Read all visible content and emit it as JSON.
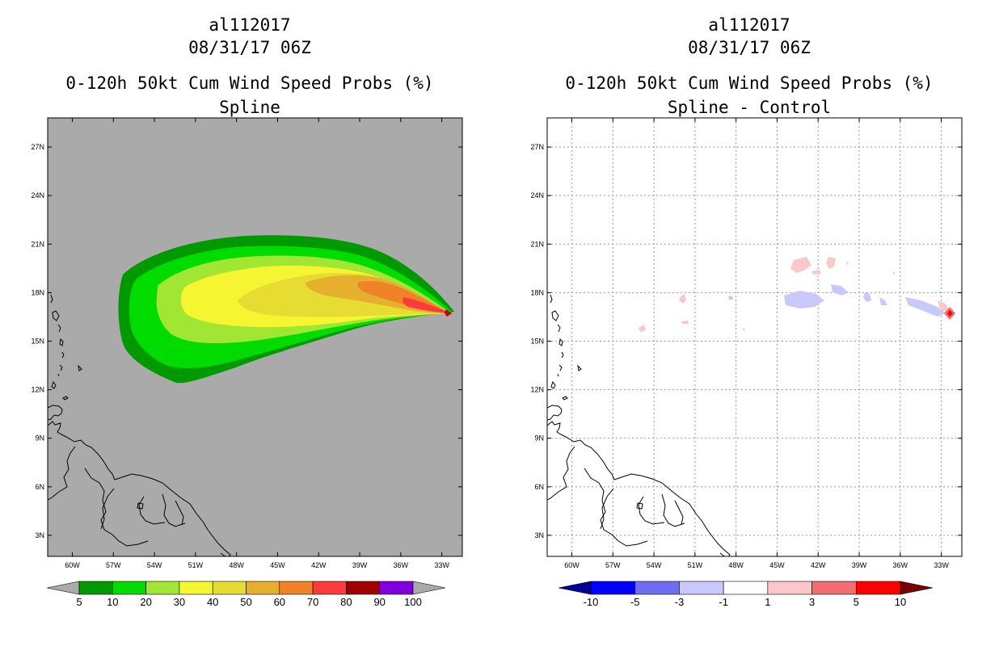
{
  "chart_data": [
    {
      "type": "heatmap",
      "panel": "left",
      "storm_id": "al112017",
      "datetime": "08/31/17 06Z",
      "title": "0-120h 50kt Cum Wind Speed Probs (%)",
      "subtitle": "Spline",
      "background_color": "#aaaaaa",
      "grid": false,
      "x_ticks": [
        "60W",
        "57W",
        "54W",
        "51W",
        "48W",
        "45W",
        "42W",
        "39W",
        "36W",
        "33W"
      ],
      "y_ticks": [
        "27N",
        "24N",
        "21N",
        "18N",
        "15N",
        "12N",
        "9N",
        "6N",
        "3N"
      ],
      "xlim_deg_lon": [
        -61.8,
        -31.5
      ],
      "ylim_deg_lat": [
        1.7,
        28.8
      ],
      "colorbar": {
        "labels": [
          "5",
          "10",
          "20",
          "30",
          "40",
          "50",
          "60",
          "70",
          "80",
          "90",
          "100"
        ],
        "colors": [
          "#009a00",
          "#00dc00",
          "#a0e632",
          "#f5f532",
          "#e6dc32",
          "#e6af2d",
          "#f08228",
          "#fa3c3c",
          "#a00000",
          "#8200dc"
        ],
        "extend_low_color": "#aaaaaa",
        "extend_high_color": "#aaaaaa"
      },
      "contour_levels": [
        5,
        10,
        20,
        30,
        40,
        50,
        60,
        70,
        80,
        90
      ]
    },
    {
      "type": "heatmap",
      "panel": "right",
      "storm_id": "al112017",
      "datetime": "08/31/17 06Z",
      "title": "0-120h 50kt Cum Wind Speed Probs (%)",
      "subtitle": "Spline - Control",
      "background_color": "#ffffff",
      "grid": true,
      "x_ticks": [
        "60W",
        "57W",
        "54W",
        "51W",
        "48W",
        "45W",
        "42W",
        "39W",
        "36W",
        "33W"
      ],
      "y_ticks": [
        "27N",
        "24N",
        "21N",
        "18N",
        "15N",
        "12N",
        "9N",
        "6N",
        "3N"
      ],
      "xlim_deg_lon": [
        -61.8,
        -31.5
      ],
      "ylim_deg_lat": [
        1.7,
        28.8
      ],
      "colorbar": {
        "labels": [
          "-10",
          "-5",
          "-3",
          "-1",
          "1",
          "3",
          "5",
          "10"
        ],
        "colors": [
          "#0000ff",
          "#6e6ef0",
          "#c8c8fa",
          "#ffffff",
          "#fac8c8",
          "#f06e6e",
          "#ff0000"
        ],
        "extend_low_color": "#000096",
        "extend_high_color": "#780000"
      }
    }
  ]
}
